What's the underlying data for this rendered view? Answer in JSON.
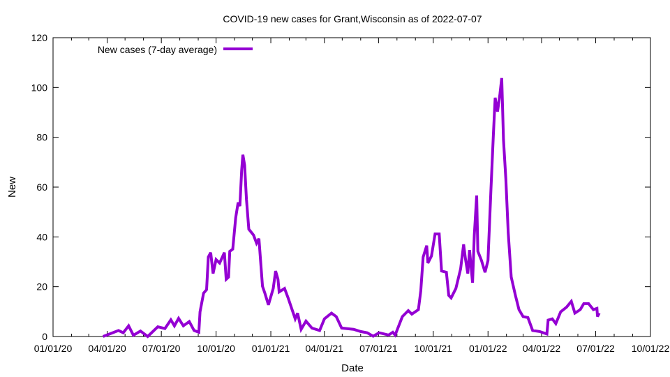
{
  "chart_data": {
    "type": "line",
    "title": "COVID-19 new cases for Grant,Wisconsin as of 2022-07-07",
    "xlabel": "Date",
    "ylabel": "New",
    "xlim": [
      "2020-01-01",
      "2022-10-01"
    ],
    "ylim": [
      0,
      120
    ],
    "x_ticks": [
      "2020-01-01",
      "2020-04-01",
      "2020-07-01",
      "2020-10-01",
      "2021-01-01",
      "2021-04-01",
      "2021-07-01",
      "2021-10-01",
      "2022-01-01",
      "2022-04-01",
      "2022-07-01",
      "2022-10-01"
    ],
    "x_tick_labels": [
      "01/01/20",
      "04/01/20",
      "07/01/20",
      "10/01/20",
      "01/01/21",
      "04/01/21",
      "07/01/21",
      "10/01/21",
      "01/01/22",
      "04/01/22",
      "07/01/22",
      "10/01/22"
    ],
    "y_ticks": [
      0,
      20,
      40,
      60,
      80,
      100,
      120
    ],
    "y_tick_labels": [
      "0",
      "20",
      "40",
      "60",
      "80",
      "100",
      "120"
    ],
    "grid": false,
    "legend_position": "top-left",
    "series": [
      {
        "name": "New cases (7-day average)",
        "color": "#9400d3",
        "points": [
          [
            "2020-03-25",
            0
          ],
          [
            "2020-04-20",
            2.4
          ],
          [
            "2020-04-28",
            1.5
          ],
          [
            "2020-05-07",
            4.3
          ],
          [
            "2020-05-15",
            0.5
          ],
          [
            "2020-05-27",
            2.2
          ],
          [
            "2020-06-08",
            0
          ],
          [
            "2020-06-25",
            3.9
          ],
          [
            "2020-07-07",
            3.2
          ],
          [
            "2020-07-17",
            6.7
          ],
          [
            "2020-07-23",
            4.3
          ],
          [
            "2020-07-30",
            7.3
          ],
          [
            "2020-08-07",
            4.3
          ],
          [
            "2020-08-17",
            6.0
          ],
          [
            "2020-08-25",
            2.4
          ],
          [
            "2020-09-02",
            1.7
          ],
          [
            "2020-09-04",
            9.9
          ],
          [
            "2020-09-10",
            17.4
          ],
          [
            "2020-09-15",
            18.8
          ],
          [
            "2020-09-18",
            31.9
          ],
          [
            "2020-09-22",
            33.7
          ],
          [
            "2020-09-26",
            25.3
          ],
          [
            "2020-10-01",
            30.9
          ],
          [
            "2020-10-07",
            29.5
          ],
          [
            "2020-10-15",
            33.7
          ],
          [
            "2020-10-18",
            23.0
          ],
          [
            "2020-10-22",
            23.9
          ],
          [
            "2020-10-24",
            34.2
          ],
          [
            "2020-10-29",
            35.1
          ],
          [
            "2020-11-03",
            47.7
          ],
          [
            "2020-11-07",
            53.8
          ],
          [
            "2020-11-10",
            52.4
          ],
          [
            "2020-11-13",
            66.9
          ],
          [
            "2020-11-15",
            73.0
          ],
          [
            "2020-11-18",
            68.8
          ],
          [
            "2020-11-21",
            55.2
          ],
          [
            "2020-11-25",
            43.1
          ],
          [
            "2020-12-03",
            40.7
          ],
          [
            "2020-12-08",
            37.5
          ],
          [
            "2020-12-12",
            39.3
          ],
          [
            "2020-12-18",
            20.2
          ],
          [
            "2020-12-22",
            17.4
          ],
          [
            "2020-12-28",
            12.7
          ],
          [
            "2021-01-05",
            19.3
          ],
          [
            "2021-01-09",
            26.3
          ],
          [
            "2021-01-13",
            23.0
          ],
          [
            "2021-01-15",
            17.9
          ],
          [
            "2021-01-24",
            19.3
          ],
          [
            "2021-01-30",
            15.5
          ],
          [
            "2021-02-07",
            9.9
          ],
          [
            "2021-02-11",
            7.1
          ],
          [
            "2021-02-15",
            9.4
          ],
          [
            "2021-02-21",
            2.9
          ],
          [
            "2021-03-01",
            6.2
          ],
          [
            "2021-03-11",
            3.4
          ],
          [
            "2021-03-24",
            2.4
          ],
          [
            "2021-04-01",
            7.1
          ],
          [
            "2021-04-13",
            9.4
          ],
          [
            "2021-04-21",
            8.0
          ],
          [
            "2021-04-30",
            3.4
          ],
          [
            "2021-05-20",
            2.9
          ],
          [
            "2021-06-01",
            2.0
          ],
          [
            "2021-06-12",
            1.5
          ],
          [
            "2021-06-22",
            0.1
          ],
          [
            "2021-07-02",
            1.5
          ],
          [
            "2021-07-18",
            0.6
          ],
          [
            "2021-07-25",
            1.7
          ],
          [
            "2021-07-29",
            0.6
          ],
          [
            "2021-08-10",
            8.0
          ],
          [
            "2021-08-20",
            10.4
          ],
          [
            "2021-08-26",
            9.0
          ],
          [
            "2021-09-06",
            10.8
          ],
          [
            "2021-09-10",
            18.3
          ],
          [
            "2021-09-14",
            31.9
          ],
          [
            "2021-09-20",
            36.5
          ],
          [
            "2021-09-22",
            29.5
          ],
          [
            "2021-09-28",
            32.3
          ],
          [
            "2021-10-04",
            41.2
          ],
          [
            "2021-10-11",
            41.2
          ],
          [
            "2021-10-15",
            26.3
          ],
          [
            "2021-10-23",
            25.8
          ],
          [
            "2021-10-27",
            16.5
          ],
          [
            "2021-10-31",
            15.5
          ],
          [
            "2021-11-08",
            19.3
          ],
          [
            "2021-11-16",
            27.2
          ],
          [
            "2021-11-21",
            37.0
          ],
          [
            "2021-11-24",
            31.4
          ],
          [
            "2021-11-28",
            25.3
          ],
          [
            "2021-12-01",
            34.7
          ],
          [
            "2021-12-06",
            21.6
          ],
          [
            "2021-12-09",
            40.7
          ],
          [
            "2021-12-13",
            56.6
          ],
          [
            "2021-12-15",
            34.2
          ],
          [
            "2021-12-21",
            30.5
          ],
          [
            "2021-12-27",
            25.8
          ],
          [
            "2022-01-01",
            30.5
          ],
          [
            "2022-01-06",
            59.4
          ],
          [
            "2022-01-10",
            80.9
          ],
          [
            "2022-01-13",
            95.9
          ],
          [
            "2022-01-17",
            90.3
          ],
          [
            "2022-01-21",
            97.3
          ],
          [
            "2022-01-24",
            103.8
          ],
          [
            "2022-01-27",
            79.1
          ],
          [
            "2022-01-31",
            63.2
          ],
          [
            "2022-02-04",
            41.7
          ],
          [
            "2022-02-09",
            23.9
          ],
          [
            "2022-02-16",
            16.5
          ],
          [
            "2022-02-22",
            10.8
          ],
          [
            "2022-03-01",
            8.0
          ],
          [
            "2022-03-09",
            7.6
          ],
          [
            "2022-03-17",
            2.4
          ],
          [
            "2022-03-29",
            2.0
          ],
          [
            "2022-04-10",
            1.0
          ],
          [
            "2022-04-12",
            6.6
          ],
          [
            "2022-04-19",
            7.1
          ],
          [
            "2022-04-25",
            5.2
          ],
          [
            "2022-05-03",
            9.9
          ],
          [
            "2022-05-13",
            11.8
          ],
          [
            "2022-05-21",
            14.1
          ],
          [
            "2022-05-27",
            9.4
          ],
          [
            "2022-06-05",
            10.8
          ],
          [
            "2022-06-11",
            13.2
          ],
          [
            "2022-06-19",
            13.2
          ],
          [
            "2022-06-27",
            10.8
          ],
          [
            "2022-07-03",
            11.3
          ],
          [
            "2022-07-04",
            8.0
          ],
          [
            "2022-07-07",
            9.4
          ]
        ]
      }
    ]
  }
}
